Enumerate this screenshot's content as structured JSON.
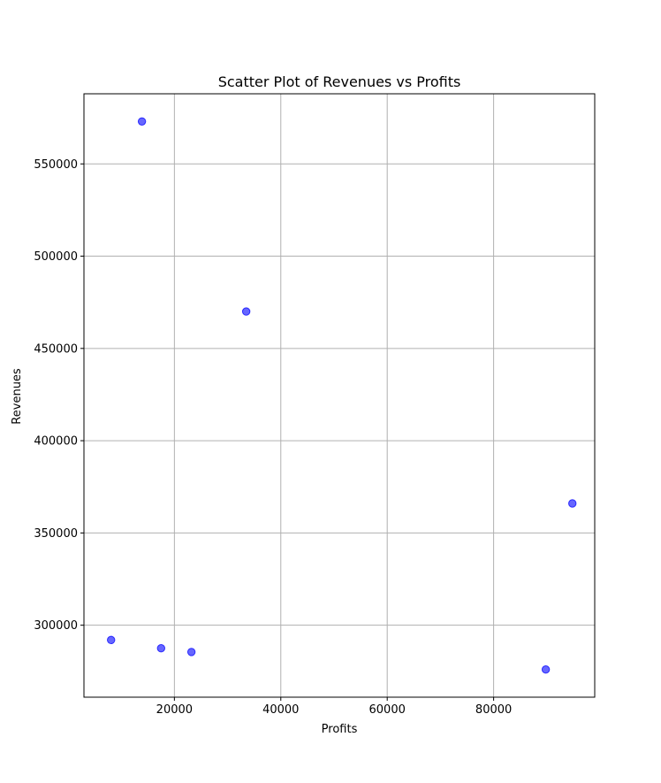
{
  "chart_data": {
    "type": "scatter",
    "title": "Scatter Plot of Revenues vs Profits",
    "xlabel": "Profits",
    "ylabel": "Revenues",
    "xlim": [
      3000,
      99000
    ],
    "ylim": [
      261000,
      588000
    ],
    "xticks": [
      20000,
      40000,
      60000,
      80000
    ],
    "xtick_labels": [
      "20000",
      "40000",
      "60000",
      "80000"
    ],
    "yticks": [
      300000,
      350000,
      400000,
      450000,
      500000,
      550000
    ],
    "ytick_labels": [
      "300000",
      "350000",
      "400000",
      "450000",
      "500000",
      "550000"
    ],
    "grid": true,
    "marker_color": "#0000ff",
    "marker_alpha": 0.6,
    "points": [
      {
        "x": 13900,
        "y": 573000
      },
      {
        "x": 33500,
        "y": 470000
      },
      {
        "x": 94800,
        "y": 366000
      },
      {
        "x": 8100,
        "y": 292000
      },
      {
        "x": 17500,
        "y": 287500
      },
      {
        "x": 23200,
        "y": 285500
      },
      {
        "x": 89800,
        "y": 276000
      }
    ]
  }
}
